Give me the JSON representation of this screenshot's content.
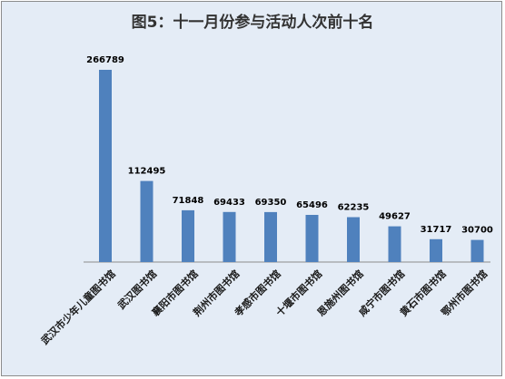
{
  "title": "图5：十一月份参与活动人次前十名",
  "colors": {
    "bar": "#4f81bd",
    "axis": "#8c8c8c",
    "background": "#e4ecf6"
  },
  "chart_data": {
    "type": "bar",
    "title": "图5：十一月份参与活动人次前十名",
    "categories": [
      "武汉市少年儿童图书馆",
      "武汉图书馆",
      "襄阳市图书馆",
      "荆州市图书馆",
      "孝感市图书馆",
      "十堰市图书馆",
      "恩施州图书馆",
      "咸宁市图书馆",
      "黄石市图书馆",
      "鄂州市图书馆"
    ],
    "values": [
      266789,
      112495,
      71848,
      69433,
      69350,
      65496,
      62235,
      49627,
      31717,
      30700
    ],
    "data_labels": [
      "266789",
      "112495",
      "71848",
      "69433",
      "69350",
      "65496",
      "62235",
      "49627",
      "31717",
      "30700"
    ],
    "ylim": [
      0,
      266789
    ],
    "xlabel": "",
    "ylabel": "",
    "grid": false,
    "legend": "none"
  }
}
